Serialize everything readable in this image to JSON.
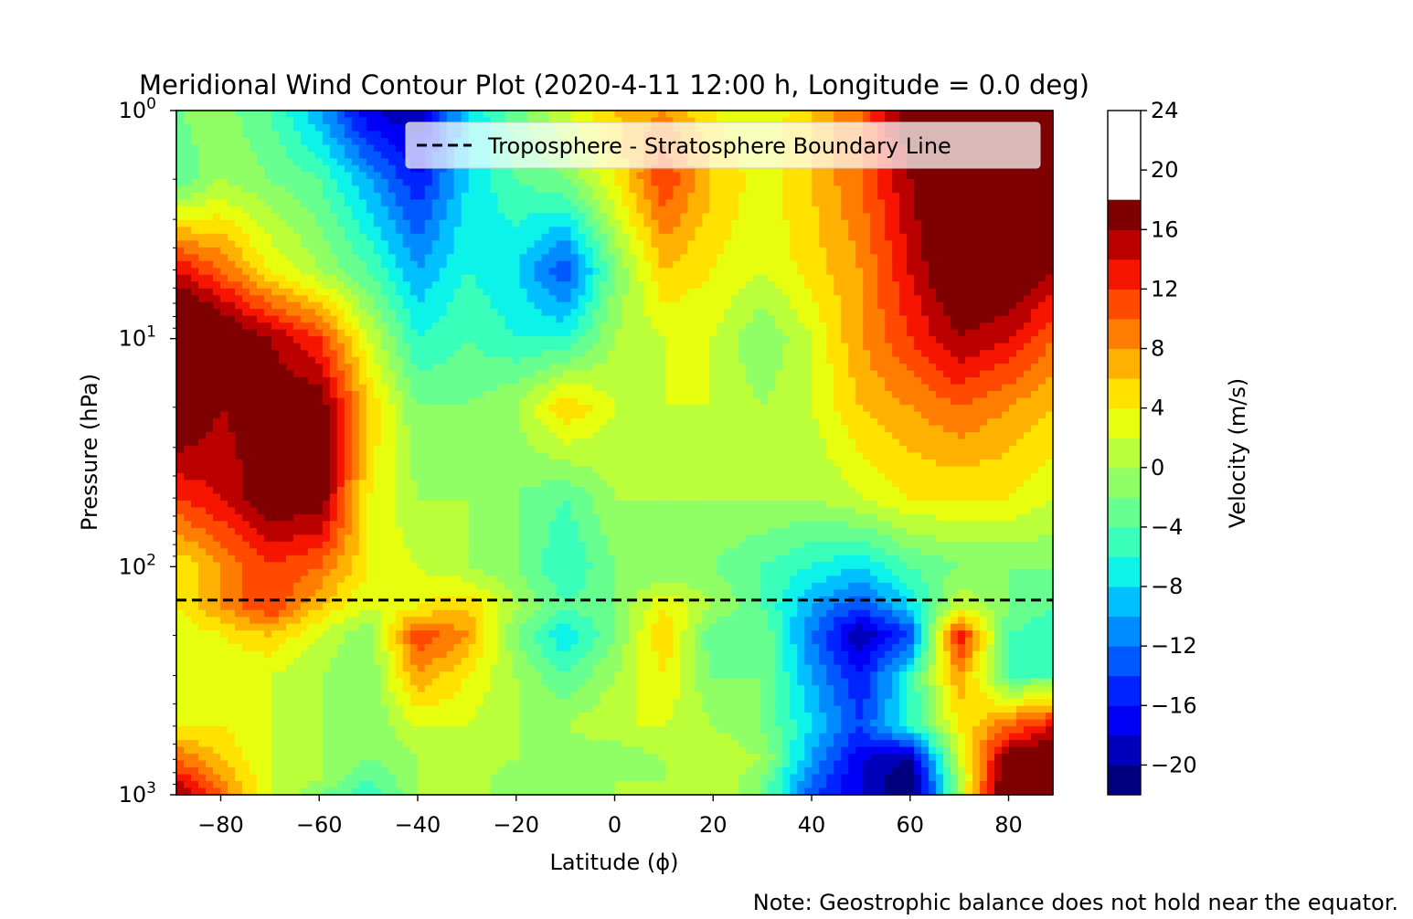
{
  "chart_data": {
    "type": "heatmap",
    "title": "Meridional Wind Contour Plot (2020-4-11 12:00 h, Longitude = 0.0 deg)",
    "xlabel": "Latitude (ϕ)",
    "ylabel": "Pressure (hPa)",
    "colorbar_label": "Velocity (m/s)",
    "note": "Note: Geostrophic balance does not hold near the equator.",
    "legend": {
      "label": "Troposphere - Stratosphere Boundary Line",
      "placement": "top-right"
    },
    "boundary_line_pressure": 140,
    "xlim": [
      -89,
      89
    ],
    "ylim_log": [
      1000,
      1
    ],
    "y_scale": "log",
    "x_ticks": [
      -80,
      -60,
      -40,
      -20,
      0,
      20,
      40,
      60,
      80
    ],
    "x_tick_labels": [
      "−80",
      "−60",
      "−40",
      "−20",
      "0",
      "20",
      "40",
      "60",
      "80"
    ],
    "y_ticks": [
      {
        "value": 1,
        "base": "10",
        "exp": "0"
      },
      {
        "value": 10,
        "base": "10",
        "exp": "1"
      },
      {
        "value": 100,
        "base": "10",
        "exp": "2"
      },
      {
        "value": 1000,
        "base": "10",
        "exp": "3"
      }
    ],
    "colorbar": {
      "vmin": -22,
      "vmax": 24,
      "levels": [
        -22,
        -20,
        -18,
        -16,
        -14,
        -12,
        -10,
        -8,
        -6,
        -4,
        -2,
        0,
        2,
        4,
        6,
        8,
        10,
        12,
        14,
        16,
        18,
        20,
        22,
        24
      ],
      "colors": [
        "#00007f",
        "#0000bb",
        "#0000f6",
        "#0024ff",
        "#0058ff",
        "#008cff",
        "#00c0ff",
        "#0df3ea",
        "#3aff bb",
        "#66ff90",
        "#90ff66",
        "#bbff3a",
        "#e7ff0f",
        "#ffe200",
        "#ffb100",
        "#ff7d00",
        "#ff4a00",
        "#f61500",
        "#bb0000",
        "#7f0000"
      ],
      "tick_values": [
        24,
        20,
        16,
        12,
        8,
        4,
        0,
        -4,
        -8,
        -12,
        -16,
        -20
      ],
      "tick_labels": [
        "24",
        "20",
        "16",
        "12",
        "8",
        "4",
        "0",
        "−4",
        "−8",
        "−12",
        "−16",
        "−20"
      ]
    },
    "lat_points": [
      -89,
      -80,
      -70,
      -60,
      -50,
      -40,
      -30,
      -20,
      -10,
      0,
      10,
      20,
      30,
      40,
      50,
      60,
      70,
      80,
      89
    ],
    "pressure_levels": [
      1,
      2,
      5,
      10,
      20,
      50,
      100,
      150,
      200,
      300,
      500,
      700,
      850,
      1000
    ],
    "velocity_grid": [
      [
        -2,
        -1,
        -4,
        -10,
        -18,
        -20,
        -8,
        -3,
        2,
        6,
        8,
        4,
        2,
        6,
        10,
        18,
        22,
        24,
        22
      ],
      [
        -4,
        0,
        -2,
        -4,
        -10,
        -16,
        -8,
        -4,
        -2,
        4,
        12,
        6,
        3,
        6,
        10,
        16,
        22,
        22,
        20
      ],
      [
        14,
        10,
        4,
        0,
        -4,
        -10,
        -6,
        -8,
        -14,
        -2,
        6,
        4,
        2,
        5,
        8,
        14,
        20,
        20,
        16
      ],
      [
        24,
        20,
        16,
        12,
        2,
        -6,
        -4,
        -6,
        -6,
        0,
        2,
        2,
        -2,
        2,
        8,
        12,
        16,
        14,
        10
      ],
      [
        20,
        16,
        18,
        18,
        6,
        -2,
        -2,
        0,
        6,
        2,
        2,
        2,
        0,
        2,
        6,
        8,
        10,
        8,
        6
      ],
      [
        12,
        14,
        18,
        18,
        4,
        0,
        0,
        -2,
        -4,
        0,
        0,
        0,
        0,
        0,
        2,
        4,
        4,
        4,
        2
      ],
      [
        4,
        8,
        12,
        10,
        4,
        2,
        0,
        -2,
        -6,
        -2,
        -2,
        -2,
        -4,
        -6,
        -8,
        -4,
        -2,
        -2,
        -2
      ],
      [
        4,
        8,
        12,
        6,
        2,
        4,
        6,
        0,
        -4,
        -2,
        4,
        0,
        -4,
        -10,
        -14,
        -8,
        2,
        -2,
        -4
      ],
      [
        2,
        4,
        6,
        2,
        -2,
        12,
        8,
        -2,
        -8,
        -2,
        6,
        -4,
        -2,
        -12,
        -20,
        -14,
        14,
        -4,
        -6
      ],
      [
        2,
        2,
        2,
        0,
        -2,
        8,
        4,
        0,
        -4,
        0,
        4,
        -2,
        -2,
        -10,
        -16,
        -6,
        8,
        -4,
        -4
      ],
      [
        4,
        4,
        2,
        0,
        -2,
        2,
        2,
        0,
        0,
        2,
        2,
        0,
        -2,
        -8,
        -14,
        -6,
        4,
        10,
        14
      ],
      [
        10,
        6,
        2,
        0,
        -2,
        0,
        2,
        0,
        -2,
        -2,
        0,
        2,
        0,
        -10,
        -18,
        -20,
        2,
        18,
        20
      ],
      [
        14,
        8,
        2,
        0,
        -4,
        0,
        2,
        -2,
        -2,
        0,
        0,
        2,
        -2,
        -12,
        -18,
        -22,
        0,
        20,
        22
      ],
      [
        16,
        10,
        2,
        -2,
        -6,
        0,
        2,
        -2,
        -2,
        0,
        0,
        2,
        -2,
        -14,
        -18,
        -22,
        0,
        22,
        22
      ]
    ]
  }
}
